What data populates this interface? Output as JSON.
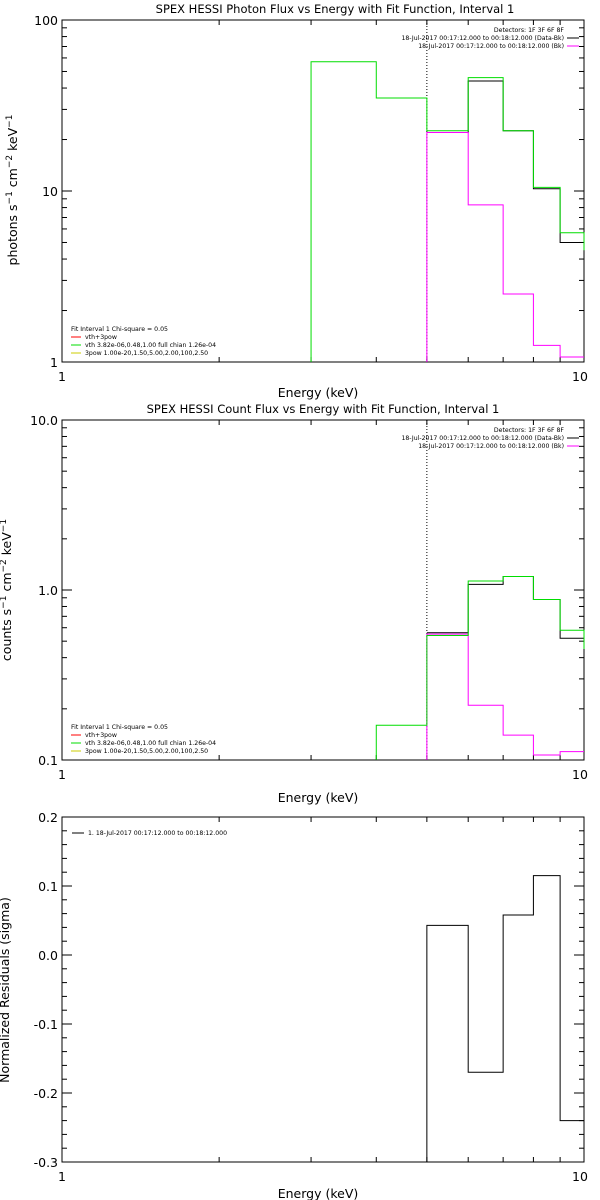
{
  "chart_data": [
    {
      "type": "line",
      "step": true,
      "title": "SPEX HESSI Photon Flux vs Energy with Fit Function, Interval 1",
      "xlabel": "Energy (keV)",
      "ylabel": "photons s^-1 cm^-2 keV^-1",
      "xscale": "log",
      "yscale": "log",
      "xlim": [
        1,
        10
      ],
      "ylim": [
        1,
        100
      ],
      "xticks": [
        "1",
        "10"
      ],
      "yticks": [
        "1",
        "10",
        "100"
      ],
      "vline": 5.0,
      "legend_top_right": [
        {
          "text": "Detectors: 1F 3F 6F 8F",
          "color": ""
        },
        {
          "text": "18-Jul-2017 00:17:12.000 to 00:18:12.000 (Data-Bk)",
          "color": "#000000"
        },
        {
          "text": "18-Jul-2017 00:17:12.000 to 00:18:12.000 (Bk)",
          "color": "#ff00ff"
        }
      ],
      "legend_bottom_left": [
        {
          "text": "Fit Interval  1    Chi-square = 0.05",
          "color": ""
        },
        {
          "text": "vth+3pow",
          "color": "#ff0000"
        },
        {
          "text": "vth 3.82e-06,0.48,1.00  full chian 1.26e-04",
          "color": "#00dd00"
        },
        {
          "text": "3pow 1.00e-20,1.50,5.00,2.00,100,2.50",
          "color": "#cccc00"
        }
      ],
      "series": [
        {
          "color": "#000000",
          "edges": [
            5,
            6,
            7,
            8,
            9,
            10
          ],
          "values": [
            22,
            44,
            22.5,
            10.3,
            5.0
          ],
          "lastDrop": 4.5
        },
        {
          "color": "#ff00ff",
          "edges": [
            5,
            6,
            7,
            8,
            9,
            10
          ],
          "values": [
            22,
            8.3,
            2.5,
            1.25,
            1.07
          ],
          "startFromBottom": true
        },
        {
          "color": "#00dd00",
          "edges": [
            3,
            4,
            5,
            6,
            7,
            8,
            9,
            10
          ],
          "values": [
            57,
            35,
            22.5,
            46,
            22.5,
            10.5,
            5.7
          ],
          "startFromBottom": true,
          "lastDrop": 4.5
        }
      ]
    },
    {
      "type": "line",
      "step": true,
      "title": "SPEX HESSI Count Flux vs Energy with Fit Function, Interval 1",
      "xlabel": "Energy (keV)",
      "ylabel": "counts s^-1 cm^-2 keV^-1",
      "xscale": "log",
      "yscale": "log",
      "xlim": [
        1,
        10
      ],
      "ylim": [
        0.1,
        10
      ],
      "xticks": [
        "1",
        "10"
      ],
      "yticks": [
        "0.1",
        "1.0",
        "10.0"
      ],
      "vline": 5.0,
      "legend_top_right": [
        {
          "text": "Detectors: 1F 3F 6F 8F",
          "color": ""
        },
        {
          "text": "18-Jul-2017 00:17:12.000 to 00:18:12.000 (Data-Bk)",
          "color": "#000000"
        },
        {
          "text": "18-Jul-2017 00:17:12.000 to 00:18:12.000 (Bk)",
          "color": "#ff00ff"
        }
      ],
      "legend_bottom_left": [
        {
          "text": "Fit Interval  1    Chi-square = 0.05",
          "color": ""
        },
        {
          "text": "vth+3pow",
          "color": "#ff0000"
        },
        {
          "text": "vth 3.82e-06,0.48,1.00  full chian 1.26e-04",
          "color": "#00dd00"
        },
        {
          "text": "3pow 1.00e-20,1.50,5.00,2.00,100,2.50",
          "color": "#cccc00"
        }
      ],
      "series": [
        {
          "color": "#000000",
          "edges": [
            5,
            6,
            7,
            8,
            9,
            10
          ],
          "values": [
            0.56,
            1.08,
            1.2,
            0.88,
            0.52
          ],
          "lastDrop": 0.48
        },
        {
          "color": "#ff00ff",
          "edges": [
            5,
            6,
            7,
            8,
            9,
            10
          ],
          "values": [
            0.55,
            0.21,
            0.14,
            0.107,
            0.112
          ],
          "startFromBottom": true
        },
        {
          "color": "#00dd00",
          "edges": [
            4,
            5,
            6,
            7,
            8,
            9,
            10
          ],
          "values": [
            0.16,
            0.54,
            1.13,
            1.2,
            0.88,
            0.58
          ],
          "startFromBottom": true,
          "lastDrop": 0.45
        }
      ]
    },
    {
      "type": "line",
      "step": true,
      "title": "",
      "xlabel": "Energy (keV)",
      "ylabel": "Normalized Residuals (sigma)",
      "xscale": "log",
      "yscale": "linear",
      "xlim": [
        1,
        10
      ],
      "ylim": [
        -0.3,
        0.2
      ],
      "xticks": [
        "1",
        "10"
      ],
      "yticks": [
        "-0.3",
        "-0.2",
        "-0.1",
        "0.0",
        "0.1",
        "0.2"
      ],
      "legend_top_left": [
        {
          "text": "1. 18-Jul-2017 00:17:12.000 to 00:18:12.000",
          "color": "#000000"
        }
      ],
      "series": [
        {
          "color": "#000000",
          "edges": [
            5,
            6,
            7,
            8,
            9,
            10
          ],
          "values": [
            0.043,
            -0.17,
            0.058,
            0.115,
            -0.24
          ],
          "startFromBottom": true
        }
      ]
    }
  ]
}
